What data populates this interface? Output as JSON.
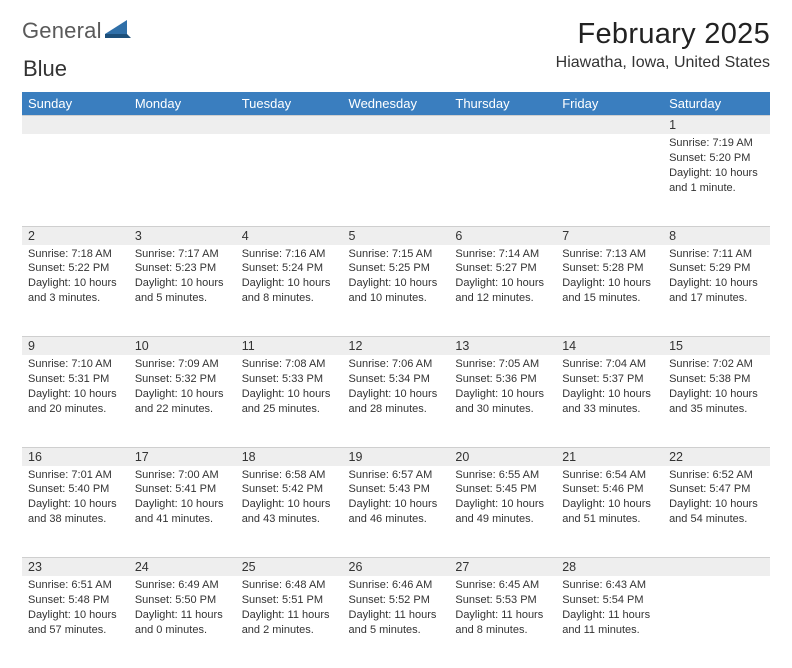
{
  "logo": {
    "text1": "General",
    "text2": "Blue"
  },
  "title": "February 2025",
  "location": "Hiawatha, Iowa, United States",
  "colors": {
    "header_bg": "#3a7ebf",
    "header_fg": "#ffffff",
    "daynum_bg": "#eeeeee",
    "divider": "#cfcfcf",
    "body_bg": "#ffffff",
    "text": "#333333",
    "logo_gray": "#5a5a5a",
    "logo_blue": "#2f6fa8"
  },
  "day_headers": [
    "Sunday",
    "Monday",
    "Tuesday",
    "Wednesday",
    "Thursday",
    "Friday",
    "Saturday"
  ],
  "weeks": [
    {
      "nums": [
        "",
        "",
        "",
        "",
        "",
        "",
        "1"
      ],
      "cells": [
        "",
        "",
        "",
        "",
        "",
        "",
        "Sunrise: 7:19 AM\nSunset: 5:20 PM\nDaylight: 10 hours and 1 minute."
      ]
    },
    {
      "nums": [
        "2",
        "3",
        "4",
        "5",
        "6",
        "7",
        "8"
      ],
      "cells": [
        "Sunrise: 7:18 AM\nSunset: 5:22 PM\nDaylight: 10 hours and 3 minutes.",
        "Sunrise: 7:17 AM\nSunset: 5:23 PM\nDaylight: 10 hours and 5 minutes.",
        "Sunrise: 7:16 AM\nSunset: 5:24 PM\nDaylight: 10 hours and 8 minutes.",
        "Sunrise: 7:15 AM\nSunset: 5:25 PM\nDaylight: 10 hours and 10 minutes.",
        "Sunrise: 7:14 AM\nSunset: 5:27 PM\nDaylight: 10 hours and 12 minutes.",
        "Sunrise: 7:13 AM\nSunset: 5:28 PM\nDaylight: 10 hours and 15 minutes.",
        "Sunrise: 7:11 AM\nSunset: 5:29 PM\nDaylight: 10 hours and 17 minutes."
      ]
    },
    {
      "nums": [
        "9",
        "10",
        "11",
        "12",
        "13",
        "14",
        "15"
      ],
      "cells": [
        "Sunrise: 7:10 AM\nSunset: 5:31 PM\nDaylight: 10 hours and 20 minutes.",
        "Sunrise: 7:09 AM\nSunset: 5:32 PM\nDaylight: 10 hours and 22 minutes.",
        "Sunrise: 7:08 AM\nSunset: 5:33 PM\nDaylight: 10 hours and 25 minutes.",
        "Sunrise: 7:06 AM\nSunset: 5:34 PM\nDaylight: 10 hours and 28 minutes.",
        "Sunrise: 7:05 AM\nSunset: 5:36 PM\nDaylight: 10 hours and 30 minutes.",
        "Sunrise: 7:04 AM\nSunset: 5:37 PM\nDaylight: 10 hours and 33 minutes.",
        "Sunrise: 7:02 AM\nSunset: 5:38 PM\nDaylight: 10 hours and 35 minutes."
      ]
    },
    {
      "nums": [
        "16",
        "17",
        "18",
        "19",
        "20",
        "21",
        "22"
      ],
      "cells": [
        "Sunrise: 7:01 AM\nSunset: 5:40 PM\nDaylight: 10 hours and 38 minutes.",
        "Sunrise: 7:00 AM\nSunset: 5:41 PM\nDaylight: 10 hours and 41 minutes.",
        "Sunrise: 6:58 AM\nSunset: 5:42 PM\nDaylight: 10 hours and 43 minutes.",
        "Sunrise: 6:57 AM\nSunset: 5:43 PM\nDaylight: 10 hours and 46 minutes.",
        "Sunrise: 6:55 AM\nSunset: 5:45 PM\nDaylight: 10 hours and 49 minutes.",
        "Sunrise: 6:54 AM\nSunset: 5:46 PM\nDaylight: 10 hours and 51 minutes.",
        "Sunrise: 6:52 AM\nSunset: 5:47 PM\nDaylight: 10 hours and 54 minutes."
      ]
    },
    {
      "nums": [
        "23",
        "24",
        "25",
        "26",
        "27",
        "28",
        ""
      ],
      "cells": [
        "Sunrise: 6:51 AM\nSunset: 5:48 PM\nDaylight: 10 hours and 57 minutes.",
        "Sunrise: 6:49 AM\nSunset: 5:50 PM\nDaylight: 11 hours and 0 minutes.",
        "Sunrise: 6:48 AM\nSunset: 5:51 PM\nDaylight: 11 hours and 2 minutes.",
        "Sunrise: 6:46 AM\nSunset: 5:52 PM\nDaylight: 11 hours and 5 minutes.",
        "Sunrise: 6:45 AM\nSunset: 5:53 PM\nDaylight: 11 hours and 8 minutes.",
        "Sunrise: 6:43 AM\nSunset: 5:54 PM\nDaylight: 11 hours and 11 minutes.",
        ""
      ]
    }
  ]
}
